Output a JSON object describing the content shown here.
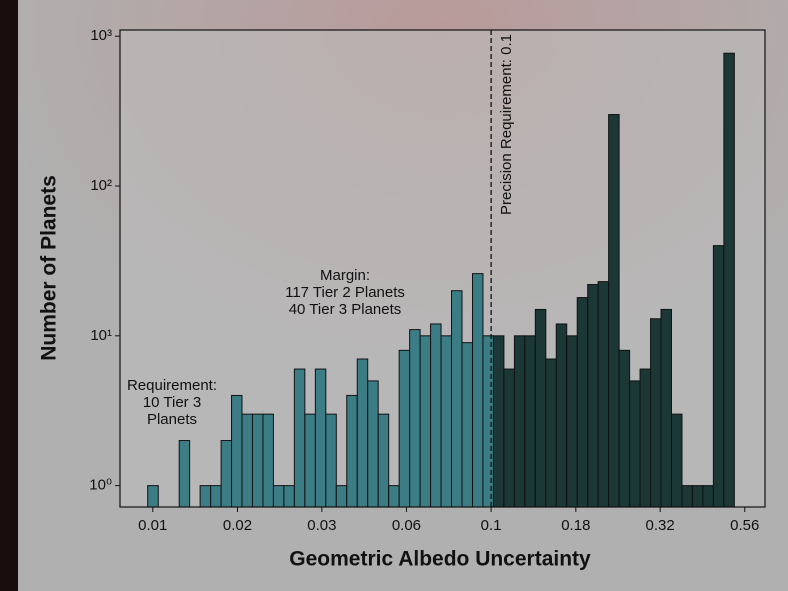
{
  "chart_data": {
    "type": "histogram",
    "xlabel": "Geometric Albedo Uncertainty",
    "ylabel": "Number of Planets",
    "bins": [
      0.00966,
      0.01038,
      0.01114,
      0.01197,
      0.01285,
      0.0138,
      0.01483,
      0.01592,
      0.01709,
      0.01835,
      0.01971,
      0.02117,
      0.02273,
      0.02441,
      0.02621,
      0.02815,
      0.03024,
      0.03246,
      0.03487,
      0.03744,
      0.04021,
      0.04318,
      0.04637,
      0.0498,
      0.05348,
      0.05743,
      0.06168,
      0.06623,
      0.07113,
      0.07638,
      0.08203,
      0.0881,
      0.09461,
      0.1016,
      0.1091,
      0.1172,
      0.1258,
      0.1351,
      0.1451,
      0.1558,
      0.1673,
      0.1797,
      0.193,
      0.2072,
      0.2225,
      0.239,
      0.2567,
      0.2756,
      0.296,
      0.3178,
      0.3413,
      0.3666,
      0.3936,
      0.4227,
      0.4539,
      0.4875,
      0.5236
    ],
    "values": [
      1,
      0,
      0,
      2,
      0,
      1,
      1,
      2,
      4,
      3,
      3,
      3,
      1,
      1,
      6,
      3,
      6,
      3,
      1,
      4,
      7,
      5,
      3,
      1,
      8,
      11,
      10,
      12,
      10,
      20,
      9,
      26,
      10,
      10,
      6,
      10,
      10,
      15,
      7,
      12,
      10,
      18,
      22,
      23,
      300,
      8,
      5,
      6,
      13,
      15,
      3,
      1,
      1,
      1,
      40,
      770
    ],
    "color": "#3b7c85",
    "color_above_threshold": "#1b3836",
    "threshold": 0.1,
    "threshold_label": "Precision Requirement: 0.1",
    "annotations": [
      [
        "Requirement:",
        "10 Tier 3",
        "Planets"
      ],
      [
        "Margin:",
        "117 Tier 2 Planets",
        "40 Tier 3 Planets"
      ]
    ],
    "xscale": "log",
    "yscale": "log",
    "xlim": [
      0.008,
      0.645
    ],
    "ylim": [
      0.72,
      1100
    ],
    "xticks": [
      {
        "value": 0.01,
        "label": "0.01"
      },
      {
        "value": 0.0178,
        "label": "0.02"
      },
      {
        "value": 0.0316,
        "label": "0.03"
      },
      {
        "value": 0.0562,
        "label": "0.06"
      },
      0.1,
      {
        "value": 0.178,
        "label": "0.18"
      },
      {
        "value": 0.316,
        "label": "0.32"
      },
      {
        "value": 0.562,
        "label": "0.56"
      }
    ],
    "yticks": [
      {
        "value": 1,
        "label": "10⁰"
      },
      {
        "value": 10,
        "label": "10¹"
      },
      {
        "value": 100,
        "label": "10²"
      },
      {
        "value": 1000,
        "label": "10³"
      }
    ]
  }
}
